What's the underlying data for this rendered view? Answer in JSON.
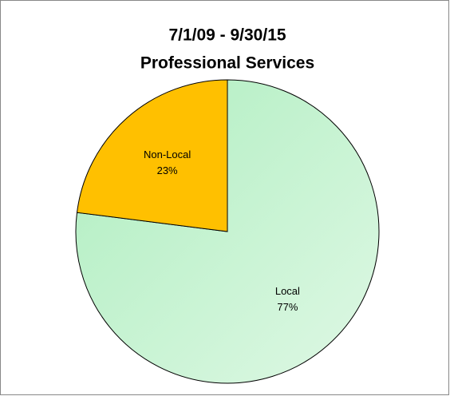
{
  "chart_data": {
    "type": "pie",
    "title": [
      "7/1/09 - 9/30/15",
      "Professional Services"
    ],
    "categories": [
      "Local",
      "Non-Local"
    ],
    "values": [
      77,
      23
    ],
    "value_labels": [
      "77%",
      "23%"
    ],
    "colors": [
      "#aeeebf",
      "#ffc000"
    ]
  }
}
